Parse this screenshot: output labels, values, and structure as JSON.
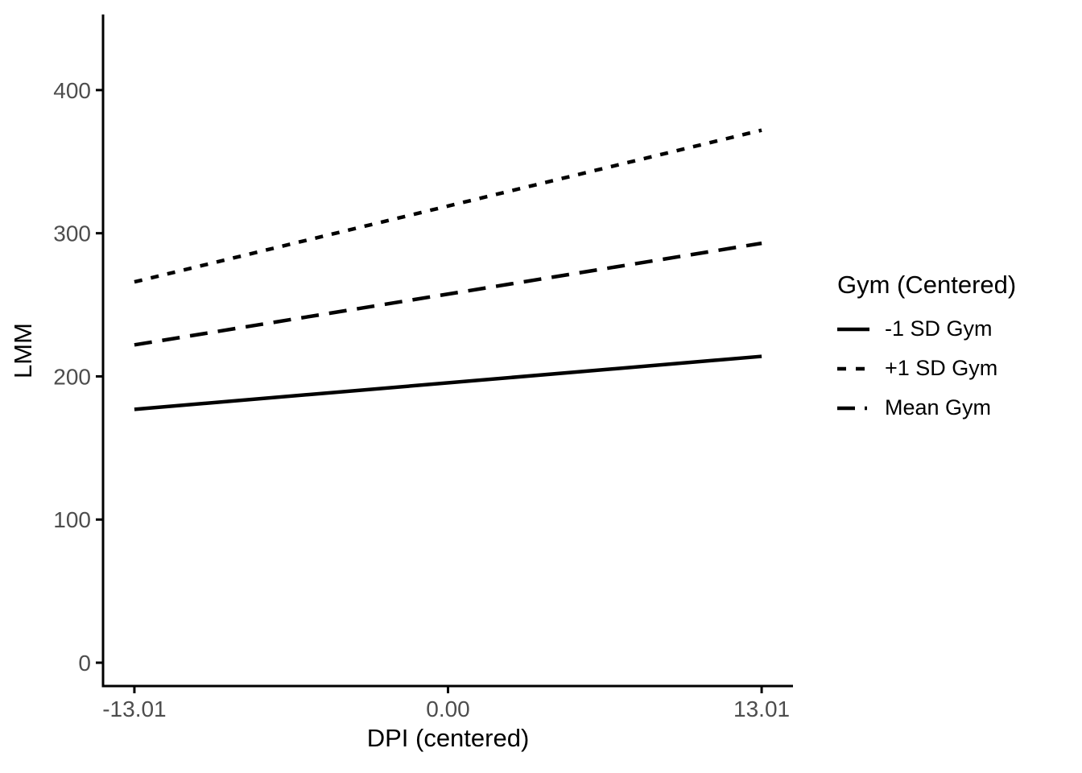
{
  "chart_data": {
    "type": "line",
    "title": "",
    "xlabel": "DPI (centered)",
    "ylabel": "LMM",
    "xlim": [
      -14.31,
      14.31
    ],
    "ylim": [
      -16.3,
      452.8
    ],
    "x_ticks": [
      -13.01,
      0,
      13.01
    ],
    "x_tick_labels": [
      "-13.01",
      "0.00",
      "13.01"
    ],
    "y_ticks": [
      0,
      100,
      200,
      300,
      400
    ],
    "y_tick_labels": [
      "0",
      "100",
      "200",
      "300",
      "400"
    ],
    "grid": "off",
    "legend_title": "Gym (Centered)",
    "legend_position": "right",
    "series": [
      {
        "name": "-1 SD Gym",
        "dash": "solid",
        "x": [
          -13.01,
          13.01
        ],
        "y": [
          177,
          214
        ]
      },
      {
        "name": "+1 SD Gym",
        "dash": "shortdash",
        "x": [
          -13.01,
          13.01
        ],
        "y": [
          266,
          372
        ]
      },
      {
        "name": "Mean Gym",
        "dash": "longdash",
        "x": [
          -13.01,
          13.01
        ],
        "y": [
          222,
          293
        ]
      }
    ],
    "colors": {
      "line": "#000000",
      "axis": "#000000",
      "tick_label": "#4d4d4d",
      "background": "#ffffff"
    }
  }
}
